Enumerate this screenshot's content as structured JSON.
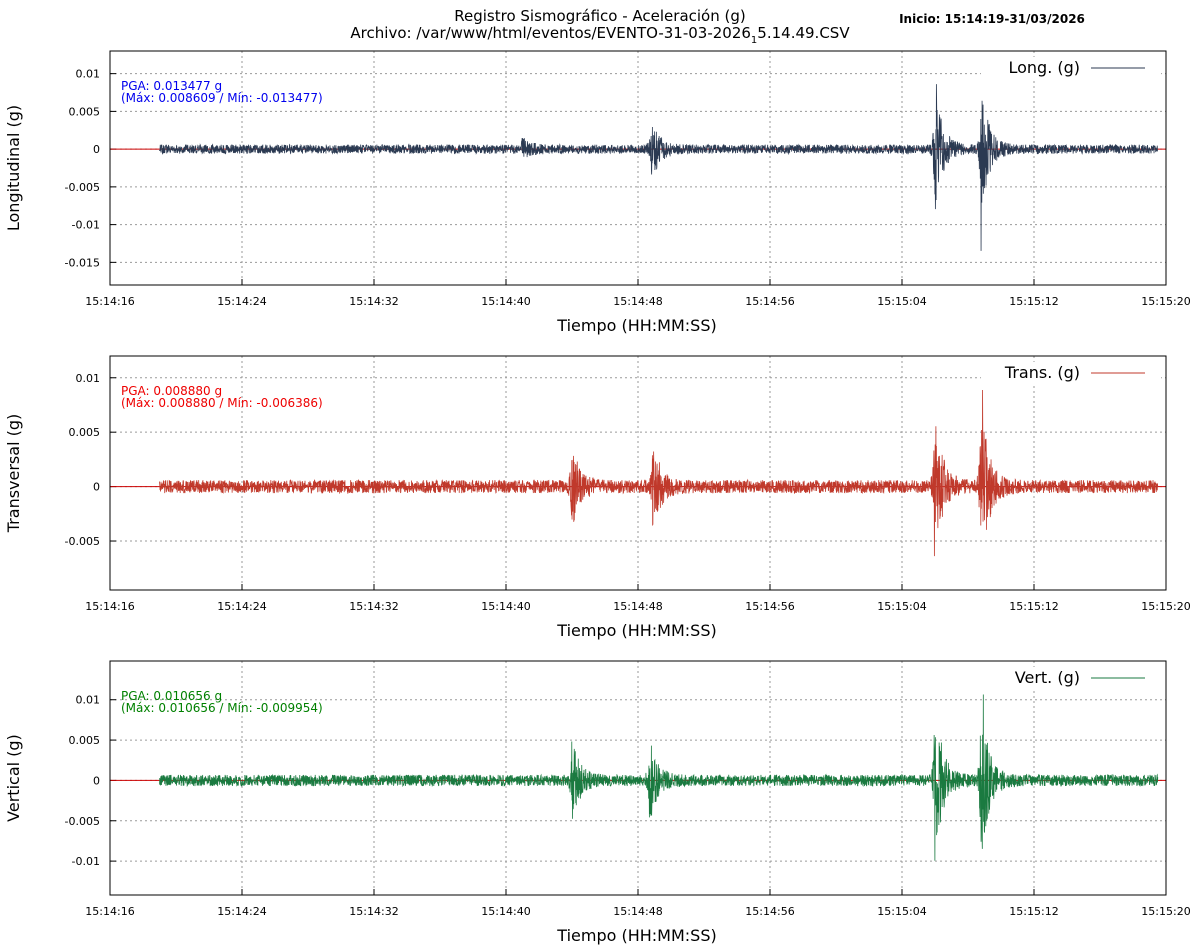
{
  "header": {
    "title_line1": "Registro Sismográfico - Aceleración (g)",
    "title_line2_prefix": "Archivo: /var/www/html/eventos/EVENTO-31-03-2026",
    "title_line2_sub": "1",
    "title_line2_suffix": "5.14.49.CSV",
    "start_info": "Inicio: 15:14:19-31/03/2026"
  },
  "chart_data": [
    {
      "type": "line",
      "name": "panel-longitudinal",
      "xlabel": "Tiempo (HH:MM:SS)",
      "ylabel": "Longitudinal (g)",
      "x_start": "15:14:16",
      "x_end": "15:15:20",
      "x_range_seconds": [
        0,
        64
      ],
      "x_ticks": [
        "15:14:16",
        "15:14:24",
        "15:14:32",
        "15:14:40",
        "15:14:48",
        "15:14:56",
        "15:15:04",
        "15:15:12",
        "15:15:20"
      ],
      "ylim": [
        -0.018,
        0.013
      ],
      "y_ticks": [
        0.01,
        0.005,
        0,
        -0.005,
        -0.01,
        -0.015
      ],
      "y_tick_labels": [
        "0.01",
        "0.005",
        "0",
        "-0.005",
        "-0.01",
        "-0.015"
      ],
      "grid": true,
      "legend": "top-right",
      "color": "#2b3a52",
      "series": [
        {
          "name": "Long. (g)",
          "data_start": "15:14:19",
          "data_end": "15:15:19.5",
          "noise_amplitude": 0.0006,
          "events": [
            {
              "time": "15:14:41",
              "amplitude": 0.0012
            },
            {
              "time": "15:14:48.8",
              "amplitude": 0.0045
            },
            {
              "time": "15:15:06",
              "amplitude": 0.008
            },
            {
              "time": "15:15:08.8",
              "amplitude": 0.0085
            }
          ],
          "peak_max": 0.008609,
          "peak_min": -0.013477
        }
      ],
      "annotations": [
        "PGA: 0.013477 g",
        "(Máx: 0.008609 / Mín: -0.013477)"
      ],
      "annotation_color": "#0000ee"
    },
    {
      "type": "line",
      "name": "panel-transversal",
      "xlabel": "Tiempo (HH:MM:SS)",
      "ylabel": "Transversal (g)",
      "x_start": "15:14:16",
      "x_end": "15:15:20",
      "x_range_seconds": [
        0,
        64
      ],
      "x_ticks": [
        "15:14:16",
        "15:14:24",
        "15:14:32",
        "15:14:40",
        "15:14:48",
        "15:14:56",
        "15:15:04",
        "15:15:12",
        "15:15:20"
      ],
      "ylim": [
        -0.0095,
        0.012
      ],
      "y_ticks": [
        0.01,
        0.005,
        0,
        -0.005
      ],
      "y_tick_labels": [
        "0.01",
        "0.005",
        "0",
        "-0.005"
      ],
      "grid": true,
      "legend": "top-right",
      "color": "#c0392b",
      "series": [
        {
          "name": "Trans. (g)",
          "data_start": "15:14:19",
          "data_end": "15:15:19.5",
          "noise_amplitude": 0.0006,
          "events": [
            {
              "time": "15:14:44",
              "amplitude": 0.0035
            },
            {
              "time": "15:14:48.9",
              "amplitude": 0.004
            },
            {
              "time": "15:15:06",
              "amplitude": 0.007
            },
            {
              "time": "15:15:08.8",
              "amplitude": 0.008
            }
          ],
          "peak_max": 0.00888,
          "peak_min": -0.006386
        }
      ],
      "annotations": [
        "PGA: 0.008880 g",
        "(Máx: 0.008880 / Mín: -0.006386)"
      ],
      "annotation_color": "#ee0000"
    },
    {
      "type": "line",
      "name": "panel-vertical",
      "xlabel": "Tiempo (HH:MM:SS)",
      "ylabel": "Vertical (g)",
      "x_start": "15:14:16",
      "x_end": "15:15:20",
      "x_range_seconds": [
        0,
        64
      ],
      "x_ticks": [
        "15:14:16",
        "15:14:24",
        "15:14:32",
        "15:14:40",
        "15:14:48",
        "15:14:56",
        "15:15:04",
        "15:15:12",
        "15:15:20"
      ],
      "ylim": [
        -0.0142,
        0.0148
      ],
      "y_ticks": [
        0.01,
        0.005,
        0,
        -0.005,
        -0.01
      ],
      "y_tick_labels": [
        "0.01",
        "0.005",
        "0",
        "-0.005",
        "-0.01"
      ],
      "grid": true,
      "legend": "top-right",
      "color": "#1a7a40",
      "series": [
        {
          "name": "Vert. (g)",
          "data_start": "15:14:19",
          "data_end": "15:15:19.5",
          "noise_amplitude": 0.0007,
          "events": [
            {
              "time": "15:14:44",
              "amplitude": 0.005
            },
            {
              "time": "15:14:48.7",
              "amplitude": 0.005
            },
            {
              "time": "15:15:06",
              "amplitude": 0.0095
            },
            {
              "time": "15:15:08.8",
              "amplitude": 0.0095
            }
          ],
          "peak_max": 0.010656,
          "peak_min": -0.009954
        }
      ],
      "annotations": [
        "PGA: 0.010656 g",
        "(Máx: 0.010656 / Mín: -0.009954)"
      ],
      "annotation_color": "#008000"
    }
  ]
}
